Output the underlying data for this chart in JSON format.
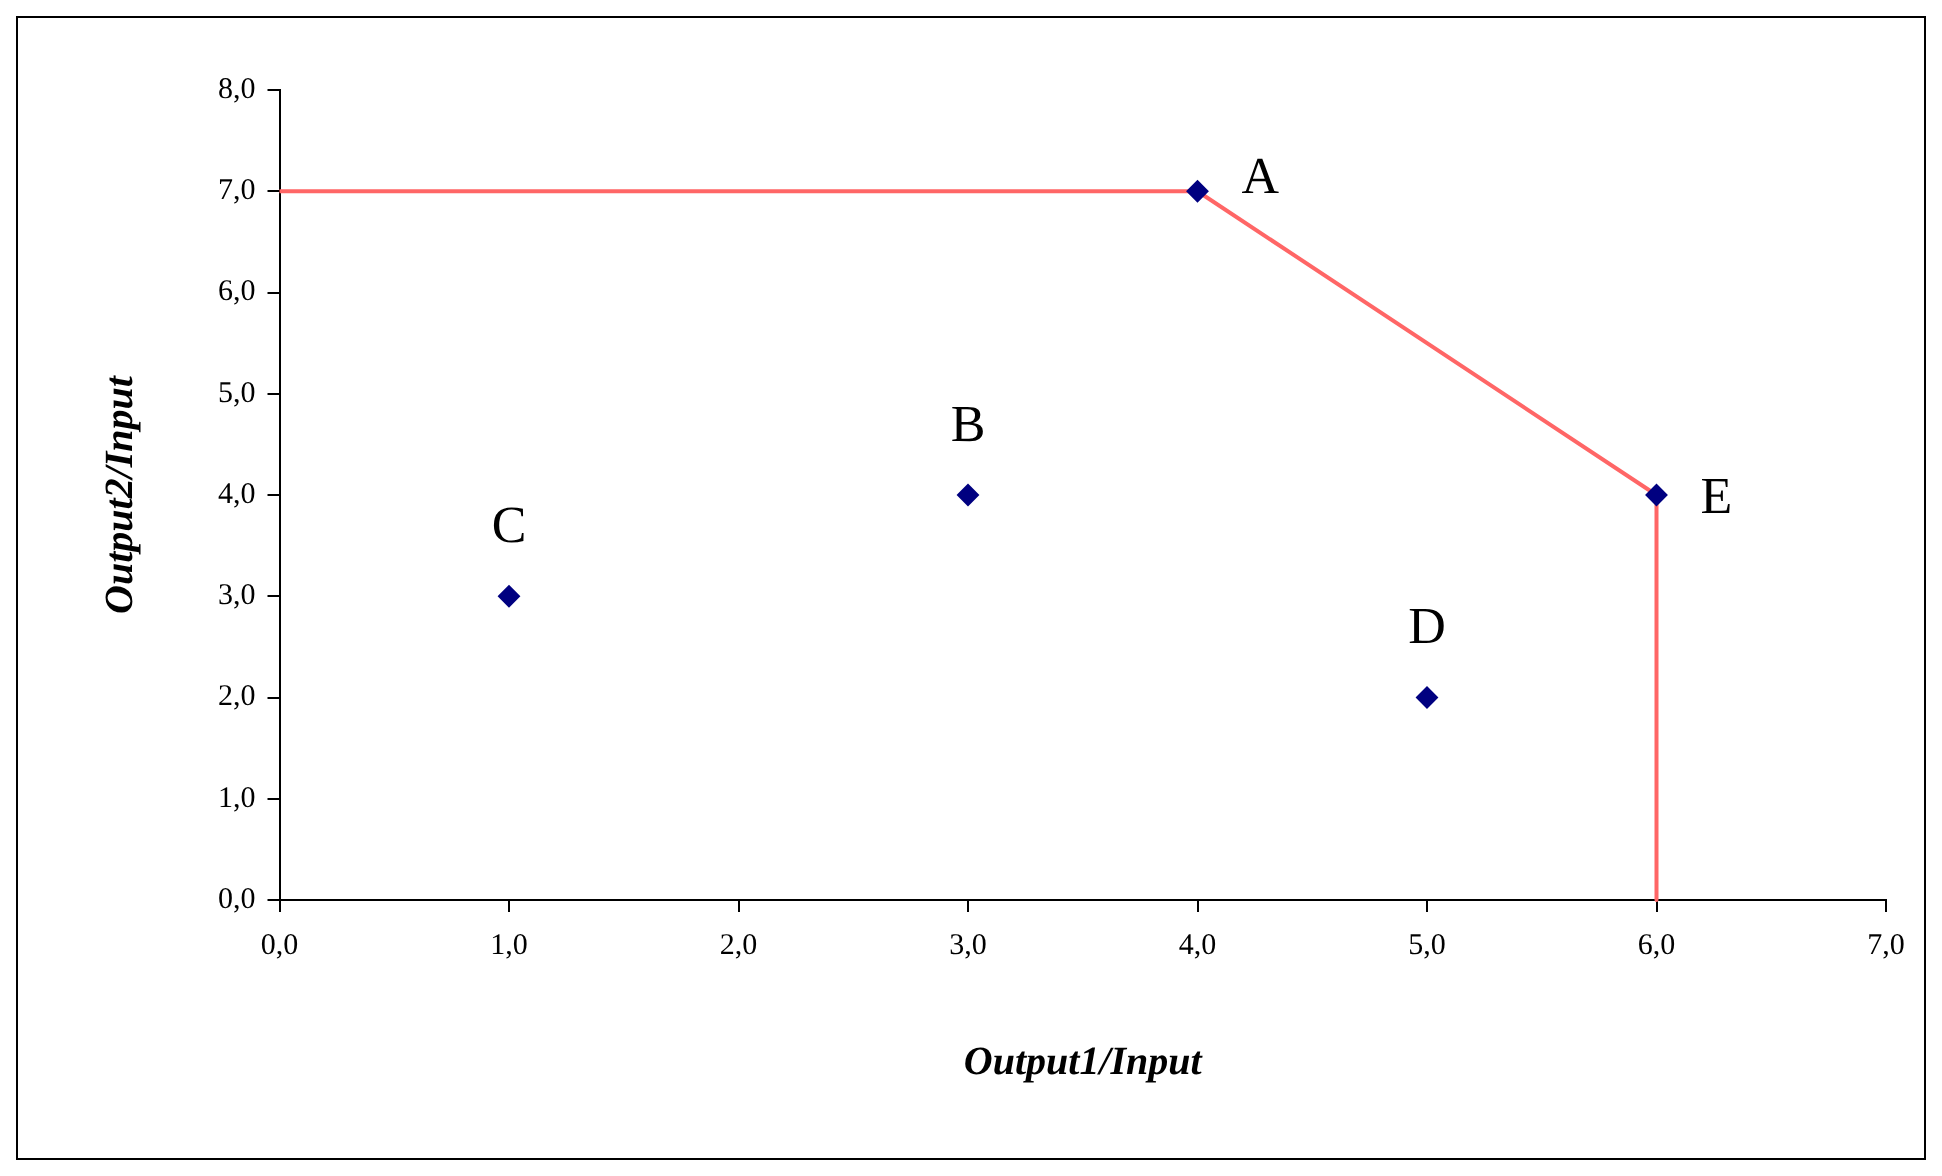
{
  "chart_data": {
    "type": "scatter",
    "xlabel": "Output1/Input",
    "ylabel": "Output2/Input",
    "series": [
      {
        "type": "line",
        "color": "#ff6666",
        "x": [
          0,
          4,
          6,
          6
        ],
        "values": [
          7,
          7,
          4,
          0
        ],
        "marker": "none",
        "line_style": "solid"
      },
      {
        "type": "scatter",
        "color": "#000080",
        "x": [
          4,
          3,
          1,
          5,
          6
        ],
        "values": [
          7,
          4,
          3,
          2,
          4
        ],
        "marker": "diamond"
      }
    ],
    "annotations": [
      {
        "text": "A",
        "x": 4,
        "y": 7
      },
      {
        "text": "B",
        "x": 3,
        "y": 4
      },
      {
        "text": "C",
        "x": 1,
        "y": 3
      },
      {
        "text": "D",
        "x": 5,
        "y": 2
      },
      {
        "text": "E",
        "x": 6,
        "y": 4
      }
    ],
    "xlim": [
      0,
      7
    ],
    "ylim": [
      0,
      8
    ],
    "xticks": [
      {
        "value": 0,
        "label": "0,0"
      },
      {
        "value": 1,
        "label": "1,0"
      },
      {
        "value": 2,
        "label": "2,0"
      },
      {
        "value": 3,
        "label": "3,0"
      },
      {
        "value": 4,
        "label": "4,0"
      },
      {
        "value": 5,
        "label": "5,0"
      },
      {
        "value": 6,
        "label": "6,0"
      },
      {
        "value": 7,
        "label": "7,0"
      }
    ],
    "yticks": [
      {
        "value": 0,
        "label": "0,0"
      },
      {
        "value": 1,
        "label": "1,0"
      },
      {
        "value": 2,
        "label": "2,0"
      },
      {
        "value": 3,
        "label": "3,0"
      },
      {
        "value": 4,
        "label": "4,0"
      },
      {
        "value": 5,
        "label": "5,0"
      },
      {
        "value": 6,
        "label": "6,0"
      },
      {
        "value": 7,
        "label": "7,0"
      },
      {
        "value": 8,
        "label": "8,0"
      }
    ],
    "grid": false,
    "legend": false
  }
}
